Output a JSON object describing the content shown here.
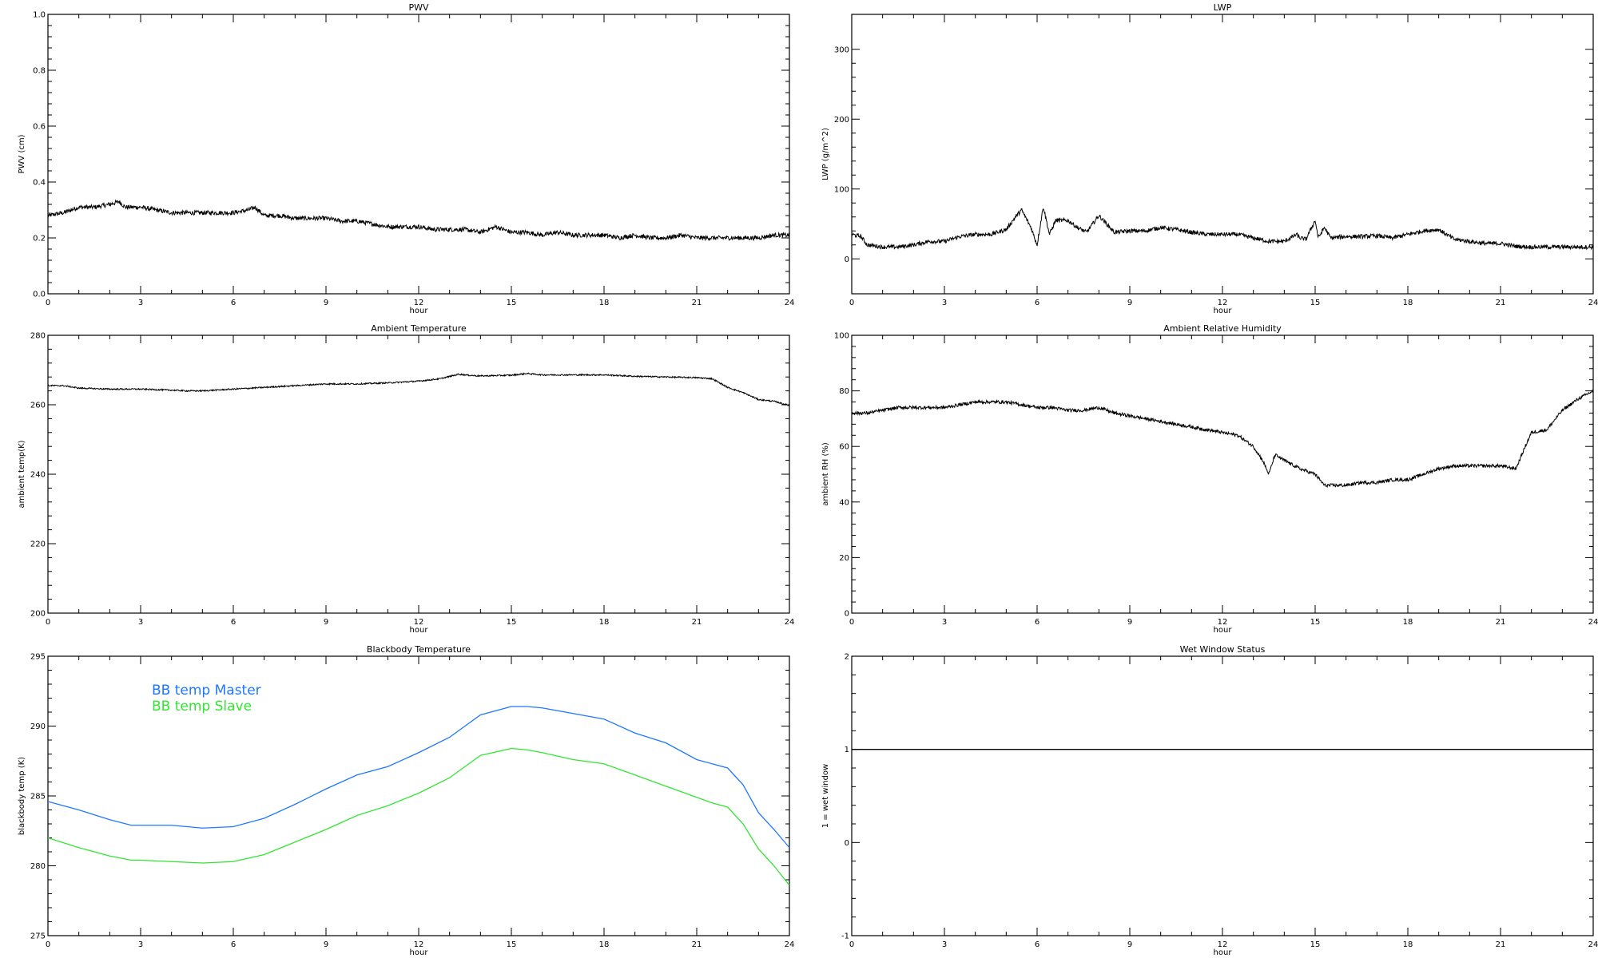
{
  "chart_data": [
    {
      "id": "pwv",
      "type": "line",
      "title": "PWV",
      "xlabel": "hour",
      "ylabel": "PWV (cm)",
      "xlim": [
        0,
        24
      ],
      "ylim": [
        0,
        1
      ],
      "xticks": [
        "0",
        "3",
        "6",
        "9",
        "12",
        "15",
        "18",
        "21",
        "24"
      ],
      "yticks": [
        "0.0",
        "0.2",
        "0.4",
        "0.6",
        "0.8",
        "1.0"
      ],
      "series": [
        {
          "color": "#000000",
          "noise": 0.008,
          "x": [
            0,
            0.5,
            1,
            1.5,
            2,
            2.3,
            2.5,
            3,
            3.5,
            4,
            4.5,
            5,
            5.5,
            6,
            6.5,
            6.7,
            7,
            7.5,
            8,
            8.5,
            9,
            9.5,
            10,
            10.5,
            11,
            11.5,
            12,
            12.5,
            13,
            13.5,
            14,
            14.5,
            15,
            15.5,
            16,
            16.5,
            17,
            17.5,
            18,
            18.5,
            19,
            19.5,
            20,
            20.5,
            21,
            21.5,
            22,
            22.5,
            23,
            23.5,
            24
          ],
          "y": [
            0.28,
            0.29,
            0.31,
            0.31,
            0.32,
            0.33,
            0.31,
            0.31,
            0.3,
            0.29,
            0.29,
            0.29,
            0.29,
            0.29,
            0.3,
            0.31,
            0.28,
            0.28,
            0.27,
            0.27,
            0.27,
            0.26,
            0.26,
            0.25,
            0.24,
            0.24,
            0.24,
            0.23,
            0.23,
            0.23,
            0.22,
            0.24,
            0.22,
            0.22,
            0.21,
            0.22,
            0.21,
            0.21,
            0.21,
            0.2,
            0.21,
            0.2,
            0.2,
            0.21,
            0.2,
            0.2,
            0.2,
            0.2,
            0.2,
            0.21,
            0.21
          ]
        }
      ]
    },
    {
      "id": "lwp",
      "type": "line",
      "title": "LWP",
      "xlabel": "hour",
      "ylabel": "LWP (g/m^2)",
      "xlim": [
        0,
        24
      ],
      "ylim": [
        -50,
        350
      ],
      "xticks": [
        "0",
        "3",
        "6",
        "9",
        "12",
        "15",
        "18",
        "21",
        "24"
      ],
      "yticks": [
        "0",
        "100",
        "200",
        "300"
      ],
      "series": [
        {
          "color": "#000000",
          "noise": 3,
          "x": [
            0,
            0.3,
            0.5,
            1,
            1.5,
            2,
            2.5,
            3,
            3.5,
            4,
            4.5,
            5,
            5.3,
            5.5,
            5.8,
            6,
            6.2,
            6.4,
            6.6,
            7,
            7.3,
            7.6,
            8,
            8.5,
            9,
            9.5,
            10,
            10.5,
            11,
            11.5,
            12,
            12.5,
            13,
            13.5,
            14,
            14.4,
            14.5,
            14.7,
            15,
            15.1,
            15.3,
            15.5,
            16,
            16.5,
            17,
            17.5,
            18,
            18.5,
            19,
            19.5,
            20,
            20.5,
            21,
            21.5,
            22,
            22.5,
            23,
            23.5,
            24
          ],
          "y": [
            35,
            32,
            20,
            17,
            17,
            20,
            25,
            25,
            32,
            35,
            35,
            42,
            60,
            70,
            45,
            20,
            75,
            35,
            55,
            55,
            45,
            38,
            62,
            38,
            40,
            40,
            45,
            42,
            38,
            35,
            35,
            35,
            30,
            25,
            25,
            35,
            30,
            28,
            55,
            30,
            45,
            30,
            32,
            32,
            33,
            30,
            35,
            40,
            42,
            28,
            25,
            22,
            22,
            18,
            17,
            17,
            17,
            17,
            17
          ]
        }
      ]
    },
    {
      "id": "ambient_temp",
      "type": "line",
      "title": "Ambient Temperature",
      "xlabel": "hour",
      "ylabel": "ambient temp(K)",
      "xlim": [
        0,
        24
      ],
      "ylim": [
        200,
        280
      ],
      "xticks": [
        "0",
        "3",
        "6",
        "9",
        "12",
        "15",
        "18",
        "21",
        "24"
      ],
      "yticks": [
        "200",
        "220",
        "240",
        "260",
        "280"
      ],
      "series": [
        {
          "color": "#000000",
          "noise": 0.2,
          "x": [
            0,
            0.5,
            1,
            2,
            3,
            4,
            4.5,
            5,
            6,
            7,
            8,
            9,
            10,
            11,
            12,
            12.7,
            13.3,
            13.6,
            14,
            15,
            15.5,
            16,
            17,
            18,
            19,
            20,
            21,
            21.5,
            22,
            22.5,
            23,
            23.5,
            24
          ],
          "y": [
            265.5,
            265.5,
            264.8,
            264.5,
            264.5,
            264.2,
            264,
            264,
            264.5,
            265,
            265.5,
            266,
            266,
            266.3,
            266.8,
            267.5,
            268.8,
            268.5,
            268.3,
            268.5,
            269,
            268.6,
            268.6,
            268.6,
            268.2,
            268,
            267.8,
            267.5,
            265,
            263.5,
            261.5,
            261,
            259.8
          ]
        }
      ]
    },
    {
      "id": "ambient_rh",
      "type": "line",
      "title": "Ambient Relative Humidity",
      "xlabel": "hour",
      "ylabel": "ambient RH (%)",
      "xlim": [
        0,
        24
      ],
      "ylim": [
        0,
        100
      ],
      "xticks": [
        "0",
        "3",
        "6",
        "9",
        "12",
        "15",
        "18",
        "21",
        "24"
      ],
      "yticks": [
        "0",
        "20",
        "40",
        "60",
        "80",
        "100"
      ],
      "series": [
        {
          "color": "#000000",
          "noise": 0.6,
          "x": [
            0,
            0.5,
            1,
            1.5,
            2,
            2.5,
            3,
            3.5,
            4,
            4.5,
            5,
            5.5,
            6,
            6.5,
            7,
            7.5,
            8,
            8.5,
            9,
            9.5,
            10,
            10.5,
            11,
            11.5,
            12,
            12.5,
            13,
            13.3,
            13.5,
            13.7,
            14,
            14.5,
            15,
            15.3,
            15.5,
            16,
            16.5,
            17,
            17.5,
            18,
            18.5,
            19,
            19.5,
            20,
            20.5,
            21,
            21.5,
            21.8,
            22,
            22.5,
            23,
            23.5,
            24
          ],
          "y": [
            72,
            72,
            73,
            74,
            74,
            74,
            74,
            75,
            76,
            76,
            76,
            75,
            74,
            74,
            73,
            73,
            74,
            72,
            71,
            70,
            69,
            68,
            67,
            66,
            65,
            64,
            60,
            55,
            50,
            57,
            55,
            52,
            50,
            46,
            46,
            46,
            47,
            47,
            48,
            48,
            50,
            52,
            53,
            53,
            53,
            53,
            52,
            60,
            65,
            66,
            73,
            77,
            80
          ]
        }
      ]
    },
    {
      "id": "blackbody",
      "type": "line",
      "title": "Blackbody Temperature",
      "xlabel": "hour",
      "ylabel": "blackbody temp (K)",
      "xlim": [
        0,
        24
      ],
      "ylim": [
        275,
        295
      ],
      "xticks": [
        "0",
        "3",
        "6",
        "9",
        "12",
        "15",
        "18",
        "21",
        "24"
      ],
      "yticks": [
        "275",
        "280",
        "285",
        "290",
        "295"
      ],
      "legend": "top-left",
      "series": [
        {
          "name": "BB temp Master",
          "color": "#1e78ff",
          "noise": 0,
          "x": [
            0,
            1,
            2,
            2.7,
            3,
            4,
            5,
            6,
            7,
            8,
            9,
            10,
            11,
            12,
            13,
            14,
            15,
            15.5,
            16,
            17,
            18,
            19,
            20,
            21,
            21.5,
            22,
            22.5,
            23,
            23.5,
            24
          ],
          "y": [
            284.6,
            284,
            283.3,
            282.9,
            282.9,
            282.9,
            282.7,
            282.8,
            283.4,
            284.4,
            285.5,
            286.5,
            287.1,
            288.1,
            289.2,
            290.8,
            291.4,
            291.4,
            291.3,
            290.9,
            290.5,
            289.5,
            288.8,
            287.6,
            287.3,
            287,
            285.8,
            283.8,
            282.6,
            281.3
          ]
        },
        {
          "name": "BB temp Slave",
          "color": "#32e632",
          "noise": 0,
          "x": [
            0,
            1,
            2,
            2.7,
            3,
            4,
            5,
            6,
            7,
            8,
            9,
            10,
            11,
            12,
            13,
            14,
            15,
            15.5,
            16,
            17,
            18,
            19,
            20,
            21,
            21.5,
            22,
            22.5,
            23,
            23.5,
            24
          ],
          "y": [
            282,
            281.3,
            280.7,
            280.4,
            280.4,
            280.3,
            280.2,
            280.3,
            280.8,
            281.7,
            282.6,
            283.6,
            284.3,
            285.2,
            286.3,
            287.9,
            288.4,
            288.3,
            288.1,
            287.6,
            287.3,
            286.5,
            285.7,
            284.9,
            284.5,
            284.2,
            283,
            281.2,
            280,
            278.6
          ]
        }
      ]
    },
    {
      "id": "wet_window",
      "type": "line",
      "title": "Wet Window Status",
      "xlabel": "hour",
      "ylabel": "1 = wet window",
      "xlim": [
        0,
        24
      ],
      "ylim": [
        -1,
        2
      ],
      "xticks": [
        "0",
        "3",
        "6",
        "9",
        "12",
        "15",
        "18",
        "21",
        "24"
      ],
      "yticks": [
        "-1",
        "0",
        "1",
        "2"
      ],
      "series": [
        {
          "color": "#000000",
          "noise": 0,
          "x": [
            0,
            24
          ],
          "y": [
            1,
            1
          ]
        }
      ]
    }
  ]
}
